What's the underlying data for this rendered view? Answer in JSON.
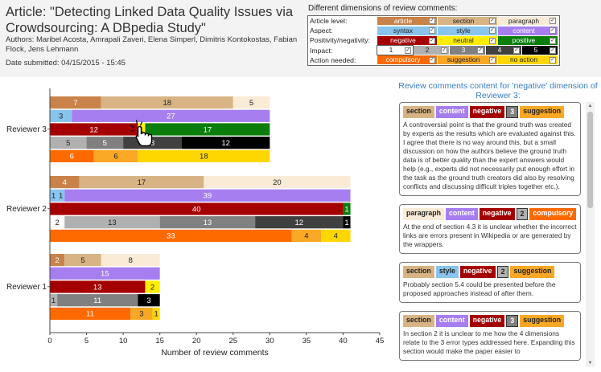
{
  "article": {
    "title": "Article: \"Detecting Linked Data Quality Issues via Crowdsourcing: A DBpedia Study\"",
    "authors": "Authors: Maribel Acosta, Amrapali Zaveri, Elena Simperl, Dimitris Kontokostas, Fabian Flock, Jens Lehmann",
    "date": "Date submitted: 04/15/2015 - 15:45"
  },
  "legend": {
    "title": "Different dimensions of review comments:",
    "check": "✓",
    "rows": [
      {
        "name": "Article level:",
        "items": [
          {
            "label": "article",
            "bg": "#c9834a",
            "fg": "#ffffff"
          },
          {
            "label": "section",
            "bg": "#d8b485",
            "fg": "#222222"
          },
          {
            "label": "paragraph",
            "bg": "#faebd7",
            "fg": "#222222"
          }
        ]
      },
      {
        "name": "Aspect:",
        "items": [
          {
            "label": "syntax",
            "bg": "#88c4ec",
            "fg": "#222222"
          },
          {
            "label": "style",
            "bg": "#88c4ec",
            "fg": "#222222"
          },
          {
            "label": "content",
            "bg": "#a67ef0",
            "fg": "#ffffff"
          }
        ]
      },
      {
        "name": "Positivity/negativity:",
        "items": [
          {
            "label": "negative",
            "bg": "#a50000",
            "fg": "#ffffff"
          },
          {
            "label": "neutral",
            "bg": "#ffee00",
            "fg": "#222222"
          },
          {
            "label": "positive",
            "bg": "#0a7d0a",
            "fg": "#ffffff"
          }
        ]
      },
      {
        "name": "Impact:",
        "items": [
          {
            "label": "1",
            "bg": "#ffffff",
            "fg": "#222222",
            "border": true
          },
          {
            "label": "2",
            "bg": "#b0b0b0",
            "fg": "#222222"
          },
          {
            "label": "3",
            "bg": "#808080",
            "fg": "#ffffff"
          },
          {
            "label": "4",
            "bg": "#404040",
            "fg": "#ffffff"
          },
          {
            "label": "5",
            "bg": "#000000",
            "fg": "#ffffff"
          }
        ]
      },
      {
        "name": "Action needed:",
        "items": [
          {
            "label": "compulsory",
            "bg": "#ff6a00",
            "fg": "#ffffff"
          },
          {
            "label": "suggestion",
            "bg": "#f9a825",
            "fg": "#222222"
          },
          {
            "label": "no action",
            "bg": "#ffd700",
            "fg": "#222222"
          }
        ]
      }
    ]
  },
  "chart_data": {
    "type": "bar",
    "orientation": "horizontal-stacked",
    "xlabel": "Number of review comments",
    "xlim": [
      0,
      45
    ],
    "xticks": [
      0,
      5,
      10,
      15,
      20,
      25,
      30,
      35,
      40,
      45
    ],
    "reviewers": [
      {
        "name": "Reviewer 3",
        "bars": [
          {
            "dimension": "Article level",
            "segments": [
              {
                "label": "article",
                "value": 7,
                "color": "#c9834a",
                "text_color": "#ffffff"
              },
              {
                "label": "section",
                "value": 18,
                "color": "#d8b485",
                "text_color": "#222222"
              },
              {
                "label": "paragraph",
                "value": 5,
                "color": "#faebd7",
                "text_color": "#222222"
              }
            ]
          },
          {
            "dimension": "Aspect",
            "segments": [
              {
                "label": "style",
                "value": 3,
                "color": "#88c4ec",
                "text_color": "#222222"
              },
              {
                "label": "content",
                "value": 27,
                "color": "#a67ef0",
                "text_color": "#ffffff"
              }
            ]
          },
          {
            "dimension": "Positivity/negativity",
            "segments": [
              {
                "label": "negative",
                "value": 12,
                "color": "#a50000",
                "text_color": "#ffffff"
              },
              {
                "label": "neutral",
                "value": 1,
                "color": "#ffee00",
                "text_color": "#222222"
              },
              {
                "label": "positive",
                "value": 17,
                "color": "#0a7d0a",
                "text_color": "#ffffff"
              }
            ]
          },
          {
            "dimension": "Impact",
            "segments": [
              {
                "label": "2",
                "value": 5,
                "color": "#b0b0b0",
                "text_color": "#222222"
              },
              {
                "label": "3",
                "value": 5,
                "color": "#808080",
                "text_color": "#ffffff"
              },
              {
                "label": "4",
                "value": 8,
                "color": "#404040",
                "text_color": "#ffffff"
              },
              {
                "label": "5",
                "value": 12,
                "color": "#000000",
                "text_color": "#ffffff"
              }
            ]
          },
          {
            "dimension": "Action needed",
            "segments": [
              {
                "label": "compulsory",
                "value": 6,
                "color": "#ff6a00",
                "text_color": "#ffffff"
              },
              {
                "label": "suggestion",
                "value": 6,
                "color": "#f9a825",
                "text_color": "#222222"
              },
              {
                "label": "no action",
                "value": 18,
                "color": "#ffd700",
                "text_color": "#222222"
              }
            ]
          }
        ]
      },
      {
        "name": "Reviewer 2",
        "bars": [
          {
            "dimension": "Article level",
            "segments": [
              {
                "label": "article",
                "value": 4,
                "color": "#c9834a",
                "text_color": "#ffffff"
              },
              {
                "label": "section",
                "value": 17,
                "color": "#d8b485",
                "text_color": "#222222"
              },
              {
                "label": "paragraph",
                "value": 20,
                "color": "#faebd7",
                "text_color": "#222222"
              }
            ]
          },
          {
            "dimension": "Aspect",
            "segments": [
              {
                "label": "syntax",
                "value": 1,
                "color": "#88c4ec",
                "text_color": "#222222"
              },
              {
                "label": "style",
                "value": 1,
                "color": "#88c4ec",
                "text_color": "#222222"
              },
              {
                "label": "content",
                "value": 39,
                "color": "#a67ef0",
                "text_color": "#ffffff"
              }
            ]
          },
          {
            "dimension": "Positivity/negativity",
            "segments": [
              {
                "label": "negative",
                "value": 40,
                "color": "#a50000",
                "text_color": "#ffffff"
              },
              {
                "label": "positive",
                "value": 1,
                "color": "#0a7d0a",
                "text_color": "#ffffff"
              }
            ]
          },
          {
            "dimension": "Impact",
            "segments": [
              {
                "label": "1",
                "value": 2,
                "color": "#ffffff",
                "text_color": "#222222"
              },
              {
                "label": "2",
                "value": 13,
                "color": "#b0b0b0",
                "text_color": "#222222"
              },
              {
                "label": "3",
                "value": 13,
                "color": "#808080",
                "text_color": "#ffffff"
              },
              {
                "label": "4",
                "value": 12,
                "color": "#404040",
                "text_color": "#ffffff"
              },
              {
                "label": "5",
                "value": 1,
                "color": "#000000",
                "text_color": "#ffffff"
              }
            ]
          },
          {
            "dimension": "Action needed",
            "segments": [
              {
                "label": "compulsory",
                "value": 33,
                "color": "#ff6a00",
                "text_color": "#ffffff"
              },
              {
                "label": "suggestion",
                "value": 4,
                "color": "#f9a825",
                "text_color": "#222222"
              },
              {
                "label": "no action",
                "value": 4,
                "color": "#ffd700",
                "text_color": "#222222"
              }
            ]
          }
        ]
      },
      {
        "name": "Reviewer 1",
        "bars": [
          {
            "dimension": "Article level",
            "segments": [
              {
                "label": "article",
                "value": 2,
                "color": "#c9834a",
                "text_color": "#ffffff"
              },
              {
                "label": "section",
                "value": 5,
                "color": "#d8b485",
                "text_color": "#222222"
              },
              {
                "label": "paragraph",
                "value": 8,
                "color": "#faebd7",
                "text_color": "#222222"
              }
            ]
          },
          {
            "dimension": "Aspect",
            "segments": [
              {
                "label": "content",
                "value": 15,
                "color": "#a67ef0",
                "text_color": "#ffffff"
              }
            ]
          },
          {
            "dimension": "Positivity/negativity",
            "segments": [
              {
                "label": "negative",
                "value": 13,
                "color": "#a50000",
                "text_color": "#ffffff"
              },
              {
                "label": "neutral",
                "value": 2,
                "color": "#ffee00",
                "text_color": "#222222"
              }
            ]
          },
          {
            "dimension": "Impact",
            "segments": [
              {
                "label": "2",
                "value": 1,
                "color": "#b0b0b0",
                "text_color": "#222222"
              },
              {
                "label": "3",
                "value": 11,
                "color": "#808080",
                "text_color": "#ffffff"
              },
              {
                "label": "5",
                "value": 3,
                "color": "#000000",
                "text_color": "#ffffff"
              }
            ]
          },
          {
            "dimension": "Action needed",
            "segments": [
              {
                "label": "compulsory",
                "value": 11,
                "color": "#ff6a00",
                "text_color": "#ffffff"
              },
              {
                "label": "suggestion",
                "value": 3,
                "color": "#f9a825",
                "text_color": "#222222"
              },
              {
                "label": "no action",
                "value": 1,
                "color": "#ffd700",
                "text_color": "#222222"
              }
            ]
          }
        ]
      }
    ]
  },
  "comments_panel": {
    "title": "Review comments content for 'negative' dimension of Reviewer 3:",
    "scroll_up": "▲",
    "scroll_down": "▼",
    "comments": [
      {
        "tags": [
          {
            "label": "section",
            "bg": "#d8b485",
            "fg": "#222222"
          },
          {
            "label": "content",
            "bg": "#a67ef0",
            "fg": "#ffffff"
          },
          {
            "label": "negative",
            "bg": "#a50000",
            "fg": "#ffffff"
          },
          {
            "label": "3",
            "bg": "#808080",
            "fg": "#ffffff"
          },
          {
            "label": "suggestion",
            "bg": "#f9a825",
            "fg": "#222222"
          }
        ],
        "text": "A controversial point is that the ground truth was created by experts as the results which are evaluated against this. I agree that there is no way around this, but a small discussion on how the authors believe the ground truth data is of better quality than the expert answers would help (e.g., experts did not necessarily put enough effort in the task as the ground truth creators did also by resolving conflicts and discussing difficult triples together etc.)."
      },
      {
        "tags": [
          {
            "label": "paragraph",
            "bg": "#faebd7",
            "fg": "#222222"
          },
          {
            "label": "content",
            "bg": "#a67ef0",
            "fg": "#ffffff"
          },
          {
            "label": "negative",
            "bg": "#a50000",
            "fg": "#ffffff"
          },
          {
            "label": "2",
            "bg": "#b0b0b0",
            "fg": "#222222"
          },
          {
            "label": "compulsory",
            "bg": "#ff6a00",
            "fg": "#ffffff"
          }
        ],
        "text": "At the end of section 4.3 it is unclear whether the incorrect links are errors present in Wikipedia or are generated by the wrappers."
      },
      {
        "tags": [
          {
            "label": "section",
            "bg": "#d8b485",
            "fg": "#222222"
          },
          {
            "label": "style",
            "bg": "#88c4ec",
            "fg": "#222222"
          },
          {
            "label": "negative",
            "bg": "#a50000",
            "fg": "#ffffff"
          },
          {
            "label": "2",
            "bg": "#b0b0b0",
            "fg": "#222222"
          },
          {
            "label": "suggestion",
            "bg": "#f9a825",
            "fg": "#222222"
          }
        ],
        "text": "Probably section 5.4 could be presented before the proposed approaches instead of after them."
      },
      {
        "tags": [
          {
            "label": "section",
            "bg": "#d8b485",
            "fg": "#222222"
          },
          {
            "label": "content",
            "bg": "#a67ef0",
            "fg": "#ffffff"
          },
          {
            "label": "negative",
            "bg": "#a50000",
            "fg": "#ffffff"
          },
          {
            "label": "3",
            "bg": "#808080",
            "fg": "#ffffff"
          },
          {
            "label": "suggestion",
            "bg": "#f9a825",
            "fg": "#222222"
          }
        ],
        "text": "In section 2 it is unclear to me how the 4 dimensions relate to the 3 error types addressed here. Expanding this section would make the paper easier to"
      }
    ]
  }
}
